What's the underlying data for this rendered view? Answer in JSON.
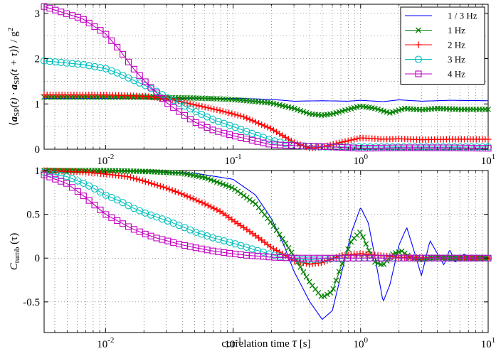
{
  "chart_data": [
    {
      "type": "line",
      "panel": "top",
      "ylabel": "⟨a_SP(t) · a_SP(t+τ)⟩ / g²",
      "ylabel_parts": {
        "open": "⟨",
        "a1": "a",
        "sub1": "SP",
        "arg1": "(t) ·",
        "a2": "a",
        "sub2": "SP",
        "arg2": "(t + τ)",
        "close": "⟩ / g",
        "sup": "2"
      },
      "xlabel": "",
      "xscale": "log",
      "xlim": [
        0.0033,
        10
      ],
      "ylim": [
        0,
        3.2
      ],
      "yticks": [
        "0",
        "1",
        "2",
        "3"
      ],
      "ytick_values": [
        0,
        1,
        2,
        3
      ],
      "xticks": [
        "10",
        "10",
        "10",
        "10"
      ],
      "xtick_exps": [
        "-2",
        "-1",
        "0",
        "1"
      ],
      "xtick_values": [
        0.01,
        0.1,
        1,
        10
      ],
      "grid": true,
      "legend_position": "top-right",
      "series": [
        {
          "name": "1 / 3 Hz",
          "color": "#0000ff",
          "marker": "none",
          "x": [
            0.0033,
            0.01,
            0.02,
            0.03,
            0.05,
            0.08,
            0.12,
            0.2,
            0.3,
            0.5,
            0.8,
            1,
            1.5,
            2,
            3,
            5,
            10
          ],
          "y": [
            1.12,
            1.12,
            1.12,
            1.12,
            1.12,
            1.12,
            1.12,
            1.1,
            1.06,
            1.07,
            1.06,
            1.08,
            1.05,
            1.09,
            1.06,
            1.08,
            1.07
          ]
        },
        {
          "name": "1 Hz",
          "color": "#008000",
          "marker": "x",
          "x": [
            0.0033,
            0.01,
            0.02,
            0.03,
            0.05,
            0.08,
            0.12,
            0.2,
            0.3,
            0.4,
            0.5,
            0.6,
            0.8,
            1,
            1.3,
            1.7,
            2.2,
            3,
            4,
            6,
            10
          ],
          "y": [
            1.15,
            1.15,
            1.15,
            1.14,
            1.13,
            1.11,
            1.08,
            1.02,
            0.9,
            0.78,
            0.75,
            0.78,
            0.88,
            0.95,
            0.9,
            0.8,
            0.9,
            0.87,
            0.9,
            0.88,
            0.88
          ]
        },
        {
          "name": "2 Hz",
          "color": "#ff0000",
          "marker": "+",
          "x": [
            0.0033,
            0.01,
            0.02,
            0.03,
            0.05,
            0.08,
            0.12,
            0.2,
            0.3,
            0.4,
            0.5,
            0.7,
            1,
            1.5,
            2,
            3,
            5,
            10
          ],
          "y": [
            1.2,
            1.2,
            1.17,
            1.12,
            0.98,
            0.85,
            0.72,
            0.45,
            0.15,
            0.02,
            0.05,
            0.15,
            0.25,
            0.22,
            0.23,
            0.21,
            0.22,
            0.22
          ]
        },
        {
          "name": "3 Hz",
          "color": "#00bfbf",
          "marker": "o",
          "x": [
            0.0033,
            0.0066,
            0.01,
            0.013,
            0.016,
            0.02,
            0.025,
            0.03,
            0.04,
            0.05,
            0.07,
            0.1,
            0.15,
            0.2,
            0.3,
            0.5,
            1,
            2,
            5,
            10
          ],
          "y": [
            1.95,
            1.87,
            1.78,
            1.66,
            1.54,
            1.42,
            1.28,
            1.15,
            0.98,
            0.84,
            0.65,
            0.5,
            0.32,
            0.2,
            0.08,
            0.05,
            0.05,
            0.05,
            0.05,
            0.05
          ]
        },
        {
          "name": "4 Hz",
          "color": "#c000c0",
          "marker": "s",
          "x": [
            0.0033,
            0.0066,
            0.01,
            0.013,
            0.016,
            0.02,
            0.025,
            0.03,
            0.04,
            0.05,
            0.07,
            0.1,
            0.15,
            0.2,
            0.3,
            0.5,
            1,
            2,
            5,
            10
          ],
          "y": [
            3.15,
            2.88,
            2.55,
            2.18,
            1.83,
            1.52,
            1.25,
            1.03,
            0.78,
            0.6,
            0.42,
            0.3,
            0.18,
            0.1,
            0.08,
            0.06,
            0.02,
            0.03,
            0.03,
            0.02
          ]
        }
      ]
    },
    {
      "type": "line",
      "panel": "bottom",
      "ylabel": "C_tumb (τ)",
      "ylabel_parts": {
        "main": "C",
        "sub": "tumb",
        "arg": " (τ)"
      },
      "xlabel": "correlation time  τ  [s]",
      "xlabel_parts": {
        "text": "correlation time",
        "symbol": "τ",
        "unit": "[s]"
      },
      "xscale": "log",
      "xlim": [
        0.0033,
        10
      ],
      "ylim": [
        -0.85,
        1
      ],
      "yticks": [
        "-0.5",
        "0",
        "0.5",
        "1"
      ],
      "ytick_values": [
        -0.5,
        0,
        0.5,
        1
      ],
      "xticks": [
        "10",
        "10",
        "10",
        "10"
      ],
      "xtick_exps": [
        "-2",
        "-1",
        "0",
        "1"
      ],
      "xtick_values": [
        0.01,
        0.1,
        1,
        10
      ],
      "grid": true,
      "series": [
        {
          "name": "1 / 3 Hz",
          "color": "#0000ff",
          "marker": "none",
          "x": [
            0.0033,
            0.01,
            0.02,
            0.05,
            0.1,
            0.15,
            0.2,
            0.25,
            0.3,
            0.4,
            0.5,
            0.6,
            0.7,
            0.85,
            1,
            1.15,
            1.3,
            1.5,
            1.7,
            2,
            2.3,
            2.6,
            3,
            3.5,
            4,
            4.5,
            5,
            5.5,
            6.5,
            7.5,
            8.5,
            10
          ],
          "y": [
            1,
            1,
            0.99,
            0.97,
            0.9,
            0.72,
            0.45,
            0.15,
            -0.15,
            -0.5,
            -0.7,
            -0.6,
            -0.2,
            0.3,
            0.58,
            0.4,
            0.0,
            -0.5,
            -0.3,
            0.15,
            0.35,
            0.1,
            -0.2,
            0.2,
            0.05,
            -0.08,
            0.1,
            -0.05,
            0.05,
            -0.03,
            0.02,
            0.0
          ]
        },
        {
          "name": "1 Hz",
          "color": "#008000",
          "marker": "x",
          "x": [
            0.0033,
            0.01,
            0.02,
            0.04,
            0.06,
            0.1,
            0.15,
            0.2,
            0.25,
            0.3,
            0.4,
            0.5,
            0.6,
            0.7,
            0.85,
            1,
            1.15,
            1.3,
            1.5,
            1.8,
            2.1,
            2.5,
            3,
            4,
            5,
            7,
            10
          ],
          "y": [
            1,
            1,
            0.99,
            0.97,
            0.92,
            0.8,
            0.62,
            0.4,
            0.2,
            0.02,
            -0.28,
            -0.45,
            -0.38,
            -0.1,
            0.2,
            0.3,
            0.1,
            -0.05,
            -0.08,
            0.05,
            0.08,
            0.0,
            -0.02,
            0.01,
            0.0,
            0.0,
            0.0
          ]
        },
        {
          "name": "2 Hz",
          "color": "#ff0000",
          "marker": "+",
          "x": [
            0.0033,
            0.005,
            0.007,
            0.01,
            0.015,
            0.02,
            0.03,
            0.04,
            0.06,
            0.08,
            0.1,
            0.13,
            0.17,
            0.2,
            0.25,
            0.3,
            0.4,
            0.5,
            0.7,
            1,
            2,
            5,
            10
          ],
          "y": [
            1,
            0.99,
            0.98,
            0.96,
            0.93,
            0.88,
            0.8,
            0.73,
            0.62,
            0.53,
            0.43,
            0.32,
            0.2,
            0.12,
            0.04,
            -0.03,
            -0.07,
            -0.05,
            0.03,
            0.05,
            0.01,
            0.0,
            0.0
          ]
        },
        {
          "name": "3 Hz",
          "color": "#00bfbf",
          "marker": "o",
          "x": [
            0.0033,
            0.005,
            0.0066,
            0.008,
            0.01,
            0.013,
            0.016,
            0.02,
            0.025,
            0.03,
            0.04,
            0.05,
            0.07,
            0.1,
            0.13,
            0.17,
            0.2,
            0.25,
            0.3,
            0.4,
            0.5,
            1,
            2,
            5,
            10
          ],
          "y": [
            0.98,
            0.93,
            0.86,
            0.8,
            0.72,
            0.65,
            0.58,
            0.52,
            0.47,
            0.43,
            0.36,
            0.3,
            0.23,
            0.17,
            0.12,
            0.07,
            0.04,
            0.01,
            -0.01,
            -0.02,
            -0.01,
            0.0,
            0.0,
            0.0,
            0.0
          ]
        },
        {
          "name": "4 Hz",
          "color": "#c000c0",
          "marker": "s",
          "x": [
            0.0033,
            0.005,
            0.0066,
            0.008,
            0.01,
            0.013,
            0.016,
            0.02,
            0.025,
            0.03,
            0.04,
            0.05,
            0.07,
            0.1,
            0.13,
            0.17,
            0.2,
            0.3,
            0.5,
            1,
            2,
            5,
            10
          ],
          "y": [
            0.95,
            0.85,
            0.72,
            0.62,
            0.5,
            0.41,
            0.34,
            0.28,
            0.23,
            0.2,
            0.15,
            0.12,
            0.08,
            0.05,
            0.03,
            0.02,
            0.01,
            0.0,
            0.0,
            0.0,
            0.0,
            0.0,
            0.0
          ]
        }
      ]
    }
  ]
}
